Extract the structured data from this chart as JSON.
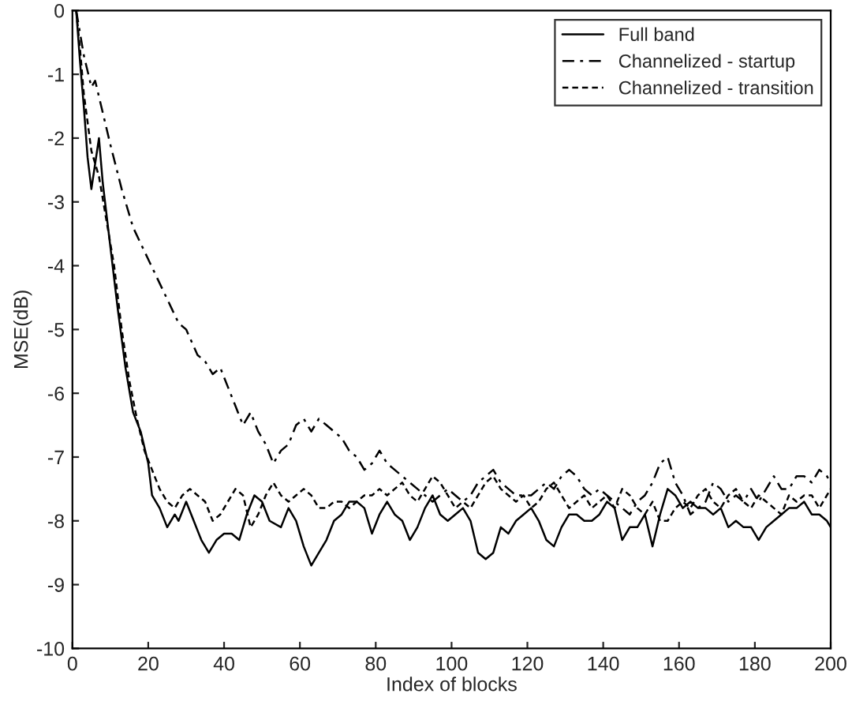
{
  "chart_data": {
    "type": "line",
    "xlabel": "Index of blocks",
    "ylabel": "MSE(dB)",
    "xlim": [
      0,
      200
    ],
    "xticks": [
      0,
      20,
      40,
      60,
      80,
      100,
      120,
      140,
      160,
      180,
      200
    ],
    "ylim": [
      -10,
      0
    ],
    "yticks": [
      -10,
      -9,
      -8,
      -7,
      -6,
      -5,
      -4,
      -3,
      -2,
      -1,
      0
    ],
    "grid": false,
    "legend": "top right",
    "marker": "none",
    "series": [
      {
        "name": "Full band",
        "color": "#000000",
        "line_style": "solid",
        "x": [
          1,
          2,
          3,
          4,
          5,
          6,
          7,
          8,
          10,
          12,
          14,
          16,
          18,
          20,
          21,
          23,
          25,
          27,
          28,
          30,
          32,
          34,
          36,
          38,
          40,
          42,
          44,
          46,
          48,
          50,
          52,
          55,
          57,
          59,
          61,
          63,
          65,
          67,
          69,
          71,
          73,
          75,
          77,
          79,
          81,
          83,
          85,
          87,
          89,
          91,
          93,
          95,
          97,
          99,
          101,
          103,
          105,
          107,
          109,
          111,
          113,
          115,
          117,
          119,
          121,
          123,
          125,
          127,
          129,
          131,
          133,
          135,
          137,
          139,
          141,
          143,
          145,
          147,
          149,
          151,
          153,
          155,
          157,
          159,
          161,
          163,
          165,
          167,
          169,
          171,
          173,
          175,
          177,
          179,
          181,
          183,
          185,
          187,
          189,
          191,
          193,
          195,
          197,
          199,
          200
        ],
        "values": [
          0,
          -0.8,
          -1.5,
          -2.3,
          -2.8,
          -2.4,
          -2.0,
          -2.7,
          -3.7,
          -4.7,
          -5.6,
          -6.3,
          -6.6,
          -7.1,
          -7.6,
          -7.8,
          -8.1,
          -7.9,
          -8.0,
          -7.7,
          -8.0,
          -8.3,
          -8.5,
          -8.3,
          -8.2,
          -8.2,
          -8.3,
          -7.9,
          -7.6,
          -7.7,
          -8.0,
          -8.1,
          -7.8,
          -8.0,
          -8.4,
          -8.7,
          -8.5,
          -8.3,
          -8.0,
          -7.9,
          -7.7,
          -7.7,
          -7.8,
          -8.2,
          -7.9,
          -7.7,
          -7.9,
          -8.0,
          -8.3,
          -8.1,
          -7.8,
          -7.6,
          -7.9,
          -8.0,
          -7.9,
          -7.8,
          -8.0,
          -8.5,
          -8.6,
          -8.5,
          -8.1,
          -8.2,
          -8.0,
          -7.9,
          -7.8,
          -8.0,
          -8.3,
          -8.4,
          -8.1,
          -7.9,
          -7.9,
          -8.0,
          -8.0,
          -7.9,
          -7.7,
          -7.8,
          -8.3,
          -8.1,
          -8.1,
          -7.9,
          -8.4,
          -7.9,
          -7.5,
          -7.6,
          -7.8,
          -7.7,
          -7.8,
          -7.8,
          -7.9,
          -7.8,
          -8.1,
          -8.0,
          -8.1,
          -8.1,
          -8.3,
          -8.1,
          -8.0,
          -7.9,
          -7.8,
          -7.8,
          -7.7,
          -7.9,
          -7.9,
          -8.0,
          -8.1
        ]
      },
      {
        "name": "Channelized - startup",
        "color": "#000000",
        "line_style": "dashed",
        "x": [
          1,
          3,
          5,
          6,
          8,
          10,
          13,
          16,
          20,
          24,
          28,
          30,
          33,
          35,
          37,
          39,
          41,
          43,
          45,
          47,
          49,
          51,
          53,
          55,
          57,
          59,
          61,
          63,
          65,
          67,
          69,
          71,
          73,
          75,
          77,
          79,
          81,
          83,
          85,
          87,
          89,
          91,
          93,
          95,
          97,
          99,
          101,
          103,
          105,
          107,
          109,
          111,
          113,
          115,
          117,
          119,
          121,
          123,
          125,
          127,
          129,
          131,
          133,
          135,
          137,
          139,
          141,
          143,
          145,
          147,
          149,
          151,
          153,
          155,
          157,
          159,
          161,
          163,
          165,
          167,
          169,
          171,
          173,
          175,
          177,
          179,
          181,
          183,
          185,
          187,
          189,
          191,
          193,
          195,
          197,
          199,
          200
        ],
        "values": [
          0,
          -0.7,
          -1.2,
          -1.1,
          -1.6,
          -2.1,
          -2.8,
          -3.4,
          -3.9,
          -4.4,
          -4.9,
          -5.0,
          -5.4,
          -5.5,
          -5.7,
          -5.6,
          -5.9,
          -6.2,
          -6.5,
          -6.3,
          -6.6,
          -6.8,
          -7.1,
          -6.9,
          -6.8,
          -6.5,
          -6.4,
          -6.6,
          -6.4,
          -6.5,
          -6.6,
          -6.7,
          -6.9,
          -7.0,
          -7.2,
          -7.1,
          -6.9,
          -7.1,
          -7.2,
          -7.3,
          -7.4,
          -7.5,
          -7.6,
          -7.7,
          -7.6,
          -7.5,
          -7.6,
          -7.7,
          -7.6,
          -7.4,
          -7.3,
          -7.2,
          -7.4,
          -7.5,
          -7.6,
          -7.6,
          -7.6,
          -7.5,
          -7.4,
          -7.5,
          -7.3,
          -7.2,
          -7.3,
          -7.5,
          -7.6,
          -7.5,
          -7.6,
          -7.7,
          -7.8,
          -7.9,
          -7.7,
          -7.6,
          -7.4,
          -7.1,
          -7.0,
          -7.4,
          -7.6,
          -7.9,
          -7.8,
          -7.7,
          -7.4,
          -7.5,
          -7.7,
          -7.6,
          -7.7,
          -7.5,
          -7.7,
          -7.5,
          -7.3,
          -7.5,
          -7.5,
          -7.3,
          -7.3,
          -7.4,
          -7.2,
          -7.3,
          -7.4
        ]
      },
      {
        "name": "Channelized - transition",
        "color": "#000000",
        "line_style": "dotted",
        "x": [
          1,
          2,
          3,
          5,
          7,
          9,
          11,
          13,
          15,
          17,
          19,
          21,
          23,
          25,
          27,
          29,
          31,
          33,
          35,
          37,
          39,
          41,
          43,
          45,
          47,
          49,
          51,
          53,
          55,
          57,
          59,
          61,
          63,
          65,
          67,
          69,
          71,
          73,
          75,
          77,
          79,
          81,
          83,
          85,
          87,
          89,
          91,
          93,
          95,
          97,
          99,
          101,
          103,
          105,
          107,
          109,
          111,
          113,
          115,
          117,
          119,
          121,
          123,
          125,
          127,
          129,
          131,
          133,
          135,
          137,
          139,
          141,
          143,
          145,
          147,
          149,
          151,
          153,
          155,
          157,
          159,
          161,
          163,
          165,
          167,
          169,
          171,
          173,
          175,
          177,
          179,
          181,
          183,
          185,
          187,
          189,
          191,
          193,
          195,
          197,
          199,
          200
        ],
        "values": [
          0,
          -0.6,
          -1.3,
          -2.2,
          -2.6,
          -3.3,
          -4.0,
          -5.0,
          -5.8,
          -6.4,
          -6.9,
          -7.2,
          -7.5,
          -7.7,
          -7.8,
          -7.6,
          -7.5,
          -7.6,
          -7.7,
          -8.0,
          -7.9,
          -7.7,
          -7.5,
          -7.6,
          -8.1,
          -7.9,
          -7.6,
          -7.4,
          -7.6,
          -7.7,
          -7.6,
          -7.5,
          -7.6,
          -7.8,
          -7.8,
          -7.7,
          -7.7,
          -7.8,
          -7.7,
          -7.6,
          -7.6,
          -7.5,
          -7.6,
          -7.5,
          -7.4,
          -7.6,
          -7.7,
          -7.5,
          -7.3,
          -7.4,
          -7.6,
          -7.8,
          -7.7,
          -7.8,
          -7.6,
          -7.4,
          -7.3,
          -7.5,
          -7.6,
          -7.7,
          -7.6,
          -7.8,
          -7.7,
          -7.5,
          -7.4,
          -7.6,
          -7.8,
          -7.7,
          -7.6,
          -7.8,
          -7.7,
          -7.6,
          -7.8,
          -7.5,
          -7.6,
          -7.8,
          -7.9,
          -7.7,
          -8.0,
          -8.0,
          -7.8,
          -7.7,
          -7.8,
          -7.6,
          -7.5,
          -7.7,
          -7.8,
          -7.6,
          -7.5,
          -7.7,
          -7.8,
          -7.6,
          -7.7,
          -7.8,
          -7.9,
          -7.6,
          -7.7,
          -7.6,
          -7.6,
          -7.8,
          -7.6,
          -7.5
        ]
      }
    ]
  }
}
